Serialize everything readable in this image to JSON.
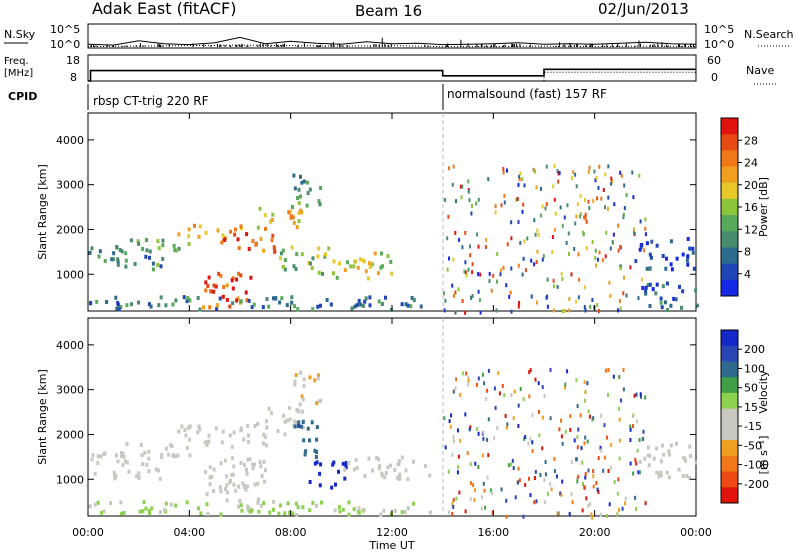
{
  "header": {
    "title": "Adak East (fitACF)",
    "beam": "Beam 16",
    "date": "02/Jun/2013"
  },
  "colors": {
    "power_scale": [
      "#1428e6",
      "#1e46b4",
      "#2e6a8c",
      "#4a8c6e",
      "#5aa85a",
      "#8cc43c",
      "#e6c828",
      "#f0a020",
      "#f07818",
      "#e84a14",
      "#e0140c"
    ],
    "velocity_scale": [
      "#e0140c",
      "#f04a14",
      "#f07818",
      "#f0a020",
      "#c8c8c0",
      "#c8c8c0",
      "#8cd050",
      "#40a048",
      "#306a8c",
      "#2846b4",
      "#1428c8"
    ],
    "cpid_line": "#000000",
    "gridline": "#c8c8c8"
  },
  "chart_data": [
    {
      "type": "line",
      "title": "",
      "panel": "nsky_nsearch",
      "left_label": "N.Sky",
      "right_label": "N.Search",
      "left_ticks": [
        "10^5",
        "10^0"
      ],
      "right_ticks": [
        "10^5",
        "10^0"
      ],
      "series": [
        {
          "name": "N.Sky",
          "style": "solid",
          "x": [
            0,
            1,
            2,
            3,
            4,
            5,
            6,
            7,
            8,
            9,
            10,
            11,
            12,
            13,
            14,
            15,
            16,
            17,
            18,
            19,
            20,
            21,
            22,
            23,
            24
          ],
          "y": [
            0.8,
            0.6,
            1.5,
            0.9,
            0.7,
            1.1,
            2.2,
            0.9,
            1.4,
            1.0,
            0.8,
            1.3,
            0.9,
            1.0,
            0.7,
            0.8,
            0.9,
            1.1,
            0.8,
            0.9,
            0.8,
            1.0,
            1.2,
            0.9,
            0.8
          ]
        },
        {
          "name": "N.Search",
          "style": "dotted",
          "x": [
            0,
            2,
            4,
            6,
            8,
            10,
            12,
            14,
            16,
            18,
            20,
            22,
            24
          ],
          "y": [
            0.3,
            0.4,
            0.5,
            0.6,
            0.5,
            0.4,
            0.5,
            0.3,
            0.3,
            0.4,
            0.3,
            0.4,
            0.3
          ]
        }
      ]
    },
    {
      "type": "line",
      "panel": "freq_nave",
      "left_label": "Freq.",
      "left_unit": "[MHz]",
      "right_label": "Nave",
      "left_ticks": [
        "18",
        "8"
      ],
      "right_ticks": [
        "60",
        "0"
      ],
      "series": [
        {
          "name": "Freq.",
          "style": "solid",
          "x": [
            0,
            0.1,
            0.1,
            14.0,
            14.0,
            18.0,
            18.0,
            24
          ],
          "y": [
            8,
            8,
            12,
            12,
            10,
            10,
            12.5,
            12.5
          ]
        },
        {
          "name": "Nave",
          "style": "dotted",
          "x": [
            14.1,
            18,
            18,
            24
          ],
          "y": [
            0,
            0,
            20,
            20
          ]
        }
      ]
    },
    {
      "type": "table",
      "panel": "cpid",
      "label": "CPID",
      "segments": [
        {
          "start": 0,
          "end": 14,
          "text": "rbsp CT-trig 220 RF"
        },
        {
          "start": 14,
          "end": 24,
          "text": "normalsound (fast) 157 RF"
        }
      ]
    },
    {
      "type": "heatmap",
      "panel": "power",
      "ylabel": "Slant Range [km]",
      "xlabel": "Time UT",
      "xlim": [
        0,
        24
      ],
      "ylim": [
        180,
        4600
      ],
      "y_ticks": [
        "1000",
        "2000",
        "3000",
        "4000"
      ],
      "x_ticks": [
        "00:00",
        "04:00",
        "08:00",
        "12:00",
        "16:00",
        "20:00",
        "00:00"
      ],
      "colorbar_label": "Power [dB]",
      "colorbar_ticks": [
        "4",
        "8",
        "12",
        "16",
        "20",
        "24",
        "28"
      ],
      "colorbar_range": [
        0,
        30
      ],
      "regions": [
        {
          "t0": 0.0,
          "t1": 3.0,
          "r0": 1100,
          "r1": 1600,
          "v": 10
        },
        {
          "t0": 1.0,
          "t1": 4.0,
          "r0": 1500,
          "r1": 1800,
          "v": 12
        },
        {
          "t0": 3.5,
          "t1": 6.0,
          "r0": 1800,
          "r1": 2100,
          "v": 20
        },
        {
          "t0": 5.0,
          "t1": 7.5,
          "r0": 1500,
          "r1": 1900,
          "v": 24
        },
        {
          "t0": 6.5,
          "t1": 8.5,
          "r0": 2000,
          "r1": 2500,
          "v": 18
        },
        {
          "t0": 8.0,
          "t1": 9.2,
          "r0": 2500,
          "r1": 3300,
          "v": 12
        },
        {
          "t0": 4.5,
          "t1": 6.5,
          "r0": 250,
          "r1": 1100,
          "v": 26
        },
        {
          "t0": 7.5,
          "t1": 9.5,
          "r0": 1000,
          "r1": 1600,
          "v": 14
        },
        {
          "t0": 9.5,
          "t1": 12.0,
          "r0": 900,
          "r1": 1500,
          "v": 16
        },
        {
          "t0": 0.0,
          "t1": 13.5,
          "r0": 200,
          "r1": 500,
          "v": 8
        },
        {
          "t0": 21.7,
          "t1": 24.0,
          "r0": 1100,
          "r1": 1800,
          "v": 4
        },
        {
          "t0": 21.7,
          "t1": 24.0,
          "r0": 200,
          "r1": 800,
          "v": 6
        }
      ]
    },
    {
      "type": "heatmap",
      "panel": "velocity",
      "ylabel": "Slant Range [km]",
      "xlabel": "Time UT",
      "xlim": [
        0,
        24
      ],
      "ylim": [
        180,
        4600
      ],
      "y_ticks": [
        "1000",
        "2000",
        "3000",
        "4000"
      ],
      "x_ticks": [
        "00:00",
        "04:00",
        "08:00",
        "12:00",
        "16:00",
        "20:00",
        "00:00"
      ],
      "colorbar_label": "Velocity",
      "colorbar_unit": "[m s⁻¹]",
      "colorbar_ticks": [
        "200",
        "100",
        "50",
        "15",
        "-15",
        "-50",
        "-100",
        "-200"
      ],
      "colorbar_range": [
        -250,
        250
      ],
      "regions": [
        {
          "t0": 0.0,
          "t1": 3.0,
          "r0": 1000,
          "r1": 1600,
          "v": 0
        },
        {
          "t0": 1.0,
          "t1": 4.0,
          "r0": 1500,
          "r1": 1800,
          "v": 5
        },
        {
          "t0": 3.5,
          "t1": 7.0,
          "r0": 1700,
          "r1": 2200,
          "v": -5
        },
        {
          "t0": 6.5,
          "t1": 8.5,
          "r0": 2000,
          "r1": 2600,
          "v": -40
        },
        {
          "t0": 8.0,
          "t1": 9.2,
          "r0": 2600,
          "r1": 3400,
          "v": -60
        },
        {
          "t0": 4.5,
          "t1": 7.0,
          "r0": 300,
          "r1": 1500,
          "v": 0
        },
        {
          "t0": 8.7,
          "t1": 10.2,
          "r0": 800,
          "r1": 1400,
          "v": 220
        },
        {
          "t0": 8.0,
          "t1": 9.0,
          "r0": 1400,
          "r1": 2300,
          "v": 150
        },
        {
          "t0": 10.0,
          "t1": 13.5,
          "r0": 1000,
          "r1": 1500,
          "v": 0
        },
        {
          "t0": 21.7,
          "t1": 24.0,
          "r0": 1000,
          "r1": 1800,
          "v": 0
        },
        {
          "t0": 0.0,
          "t1": 13.5,
          "r0": 200,
          "r1": 500,
          "v": 30
        }
      ]
    }
  ]
}
